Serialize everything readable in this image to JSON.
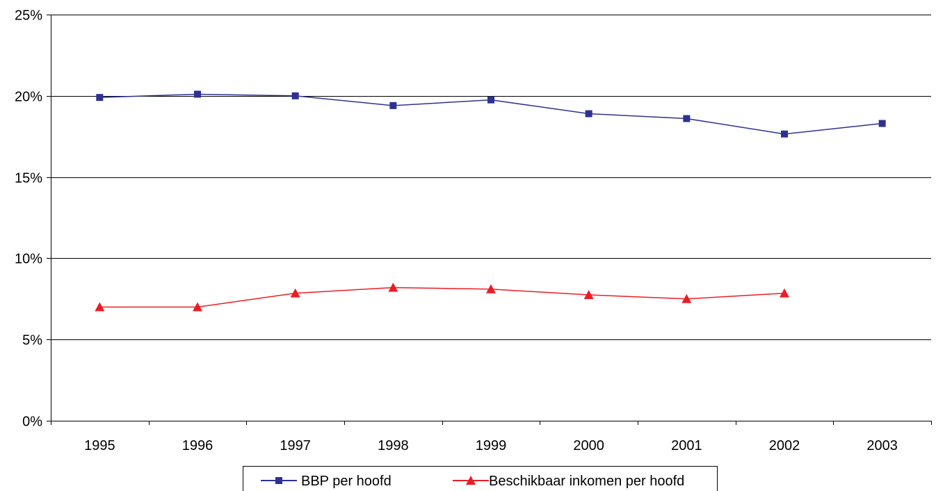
{
  "chart_data": {
    "type": "line",
    "categories": [
      "1995",
      "1996",
      "1997",
      "1998",
      "1999",
      "2000",
      "2001",
      "2002",
      "2003"
    ],
    "ylim": [
      0,
      25
    ],
    "yticks": [
      0,
      5,
      10,
      15,
      20,
      25
    ],
    "ytick_labels": [
      "0%",
      "5%",
      "10%",
      "15%",
      "20%",
      "25%"
    ],
    "grid": true,
    "legend_position": "bottom",
    "series": [
      {
        "name": "BBP per hoofd",
        "color": "#2e3192",
        "marker": "square",
        "values": [
          19.9,
          20.1,
          20.0,
          19.4,
          19.75,
          18.9,
          18.6,
          17.65,
          18.3
        ]
      },
      {
        "name": "Beschikbaar inkomen per hoofd",
        "color": "#ed1c24",
        "marker": "triangle",
        "values": [
          7.0,
          7.0,
          7.85,
          8.2,
          8.1,
          7.75,
          7.5,
          7.85,
          null
        ]
      }
    ]
  }
}
